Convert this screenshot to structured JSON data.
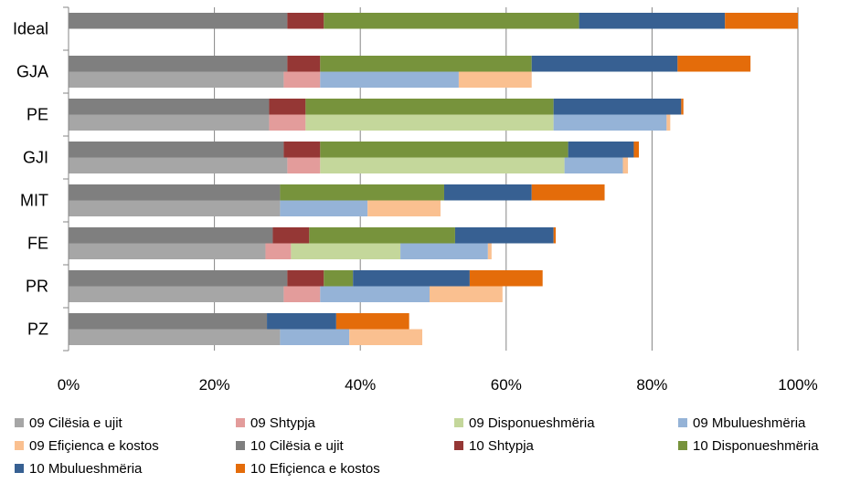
{
  "chart_data": {
    "type": "bar",
    "orientation": "horizontal",
    "stacked": true,
    "categories": [
      "Ideal",
      "GJA",
      "PE",
      "GJI",
      "MIT",
      "FE",
      "PR",
      "PZ"
    ],
    "xlim": [
      0,
      100
    ],
    "x_ticks": [
      "0%",
      "20%",
      "40%",
      "60%",
      "80%",
      "100%"
    ],
    "grid": "vertical",
    "legend_position": "bottom",
    "series": [
      {
        "name": "09 Cilësia e ujit",
        "group": "09",
        "color": "#a6a6a6",
        "values": [
          null,
          29.5,
          27.5,
          30,
          29,
          27,
          29.5,
          29
        ]
      },
      {
        "name": "09 Shtypja",
        "group": "09",
        "color": "#e39c9b",
        "values": [
          null,
          5,
          5,
          4.5,
          0,
          3.5,
          5,
          0
        ]
      },
      {
        "name": "09 Disponueshmëria",
        "group": "09",
        "color": "#c4d79b",
        "values": [
          null,
          0,
          34,
          33.5,
          0,
          15,
          0,
          0
        ]
      },
      {
        "name": "09 Mbulueshmëria",
        "group": "09",
        "color": "#95b3d7",
        "values": [
          null,
          19,
          15.5,
          8,
          12,
          12,
          15,
          9.5
        ]
      },
      {
        "name": "09 Efiçienca e kostos",
        "group": "09",
        "color": "#fac090",
        "values": [
          null,
          10,
          0.5,
          0.7,
          10,
          0.5,
          10,
          10
        ]
      },
      {
        "name": "10 Cilësia e ujit",
        "group": "10",
        "color": "#7f7f7f",
        "values": [
          30,
          30,
          27.5,
          29.5,
          29,
          28,
          30,
          27.2
        ]
      },
      {
        "name": "10 Shtypja",
        "group": "10",
        "color": "#953735",
        "values": [
          5,
          4.5,
          5,
          5,
          0,
          5,
          5,
          0
        ]
      },
      {
        "name": "10 Disponueshmëria",
        "group": "10",
        "color": "#77933c",
        "values": [
          35,
          29,
          34,
          34,
          22.5,
          20,
          4,
          0
        ]
      },
      {
        "name": "10 Mbulueshmëria",
        "group": "10",
        "color": "#376092",
        "values": [
          20,
          20,
          17.5,
          9,
          12,
          13.5,
          16,
          9.5
        ]
      },
      {
        "name": "10 Efiçienca e kostos",
        "group": "10",
        "color": "#e46c0a",
        "values": [
          10,
          10,
          0.3,
          0.7,
          10,
          0.3,
          10,
          10
        ]
      }
    ]
  }
}
